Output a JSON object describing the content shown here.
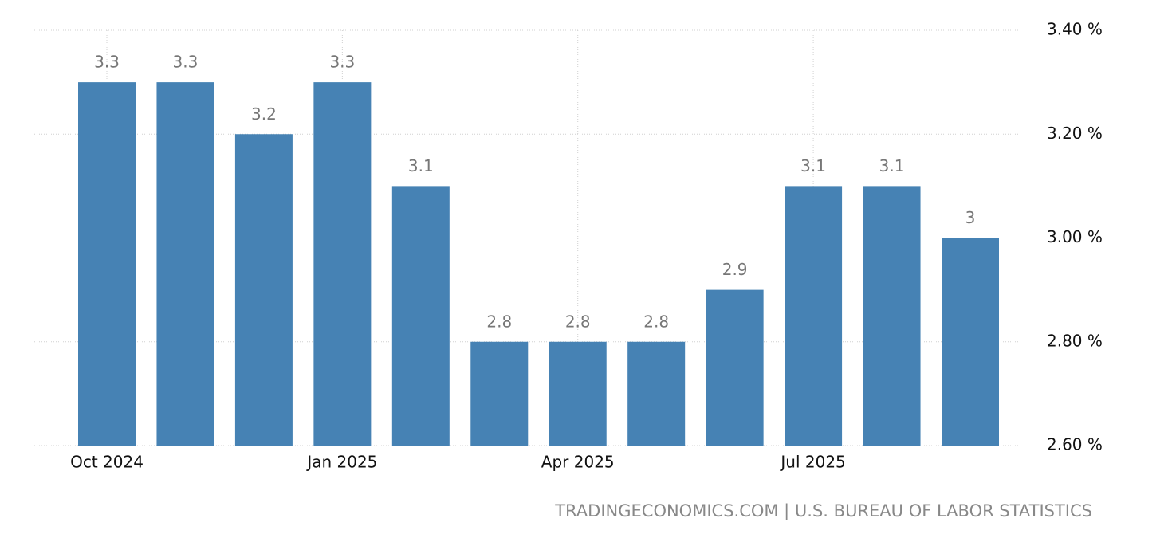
{
  "chart_data": {
    "type": "bar",
    "categories": [
      "Oct 2024",
      null,
      null,
      "Jan 2025",
      null,
      null,
      "Apr 2025",
      null,
      null,
      "Jul 2025",
      null,
      null
    ],
    "values": [
      3.3,
      3.3,
      3.2,
      3.3,
      3.1,
      2.8,
      2.8,
      2.8,
      2.9,
      3.1,
      3.1,
      3
    ],
    "color": "#4682b4",
    "ylim": [
      2.6,
      3.4
    ],
    "yticks": [
      {
        "value": 2.6,
        "label": "2.60 %"
      },
      {
        "value": 2.8,
        "label": "2.80 %"
      },
      {
        "value": 3.0,
        "label": "3.00 %"
      },
      {
        "value": 3.2,
        "label": "3.20 %"
      },
      {
        "value": 3.4,
        "label": "3.40 %"
      }
    ],
    "grid": true,
    "source": "TRADINGECONOMICS.COM | U.S. BUREAU OF LABOR STATISTICS"
  }
}
